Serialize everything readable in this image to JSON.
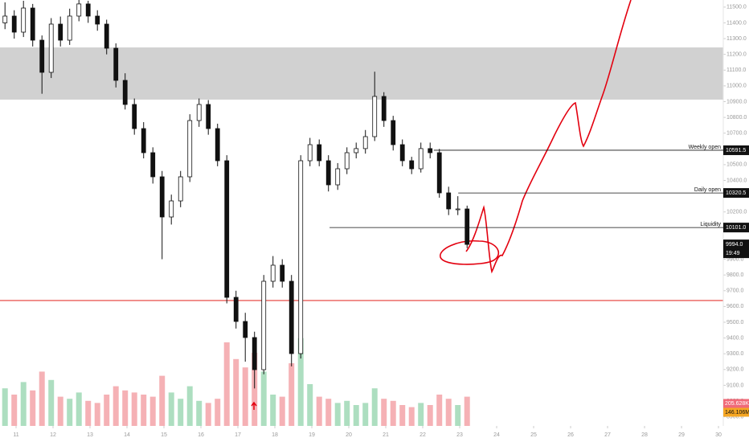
{
  "chart_data": {
    "type": "candlestick",
    "x": [
      10.7,
      10.95,
      11.2,
      11.45,
      11.7,
      11.95,
      12.2,
      12.45,
      12.7,
      12.95,
      13.2,
      13.45,
      13.7,
      13.95,
      14.2,
      14.45,
      14.7,
      14.95,
      15.2,
      15.45,
      15.7,
      15.95,
      16.2,
      16.45,
      16.7,
      16.95,
      17.2,
      17.45,
      17.7,
      17.95,
      18.2,
      18.45,
      18.7,
      18.95,
      19.2,
      19.45,
      19.7,
      19.95,
      20.2,
      20.45,
      20.7,
      20.95,
      21.2,
      21.45,
      21.7,
      21.95,
      22.2,
      22.45,
      22.7,
      22.95,
      23.2
    ],
    "open": [
      11400,
      11443,
      11341,
      11494,
      11290,
      11086,
      11392,
      11290,
      11443,
      11520,
      11443,
      11392,
      11239,
      11035,
      10882,
      10729,
      10576,
      10423,
      10168,
      10270,
      10423,
      10780,
      10882,
      10729,
      10525,
      9658,
      9505,
      9403,
      9199,
      9760,
      9862,
      9760,
      9301,
      10525,
      10627,
      10525,
      10372,
      10474,
      10576,
      10602,
      10678,
      10933,
      10780,
      10627,
      10525,
      10474,
      10602,
      10576,
      10321,
      10219,
      10219
    ],
    "high": [
      11530,
      11480,
      11540,
      11520,
      11320,
      11430,
      11440,
      11490,
      11545,
      11540,
      11480,
      11420,
      11270,
      11080,
      10920,
      10770,
      10610,
      10460,
      10310,
      10460,
      10820,
      10920,
      10910,
      10760,
      10560,
      9700,
      9560,
      9440,
      9800,
      9920,
      9900,
      9800,
      10560,
      10670,
      10660,
      10560,
      10510,
      10610,
      10640,
      10720,
      11090,
      10960,
      10810,
      10660,
      10550,
      10640,
      10640,
      10600,
      10360,
      10300,
      10240
    ],
    "low": [
      11360,
      11300,
      11310,
      11250,
      10950,
      11050,
      11250,
      11260,
      11410,
      11400,
      11350,
      11200,
      10990,
      10850,
      10690,
      10540,
      10380,
      9900,
      10120,
      10230,
      10390,
      10740,
      10690,
      10490,
      9620,
      9460,
      9250,
      9080,
      9170,
      9720,
      9720,
      9220,
      9270,
      10490,
      10490,
      10330,
      10340,
      10440,
      10540,
      10570,
      10650,
      10740,
      10590,
      10490,
      10440,
      10450,
      10540,
      10290,
      10180,
      10180,
      9970
    ],
    "close": [
      11443,
      11341,
      11494,
      11290,
      11086,
      11392,
      11290,
      11443,
      11520,
      11443,
      11392,
      11239,
      11035,
      10882,
      10729,
      10576,
      10423,
      10168,
      10270,
      10423,
      10780,
      10882,
      10729,
      10525,
      9658,
      9505,
      9403,
      9199,
      9760,
      9862,
      9760,
      9301,
      10525,
      10627,
      10525,
      10372,
      10474,
      10576,
      10602,
      10678,
      10933,
      10780,
      10627,
      10525,
      10474,
      10602,
      10576,
      10321,
      10219,
      10219,
      9994
    ],
    "volume": [
      1800,
      1500,
      2100,
      1700,
      2600,
      2200,
      1400,
      1300,
      1600,
      1200,
      1100,
      1500,
      1900,
      1700,
      1600,
      1500,
      1400,
      2400,
      1600,
      1300,
      1900,
      1200,
      1100,
      1300,
      4000,
      3200,
      2800,
      3500,
      2600,
      1500,
      1400,
      3000,
      4200,
      2000,
      1400,
      1300,
      1100,
      1200,
      1000,
      1100,
      1800,
      1300,
      1200,
      1000,
      900,
      1100,
      1000,
      1500,
      1300,
      1000,
      1400
    ],
    "vlim": [
      0,
      5000
    ],
    "up_color": "#ffffff",
    "down_color": "#111111",
    "volume_up_color": "#9fd8b5",
    "volume_down_color": "#f3a3a8",
    "xlim": [
      10.565,
      30.13
    ],
    "xticks": [
      11,
      12,
      13,
      14,
      15,
      16,
      17,
      18,
      19,
      20,
      21,
      22,
      23,
      24,
      25,
      26,
      27,
      28,
      29,
      30
    ],
    "ylim": [
      8842,
      11545
    ],
    "yticks": [
      {
        "value": 8900,
        "label": "8900.0"
      },
      {
        "value": 9000,
        "label": "9000.0"
      },
      {
        "value": 9100,
        "label": "9100.0"
      },
      {
        "value": 9200,
        "label": "9200.0"
      },
      {
        "value": 9300,
        "label": "9300.0"
      },
      {
        "value": 9400,
        "label": "9400.0"
      },
      {
        "value": 9500,
        "label": "9500.0"
      },
      {
        "value": 9600,
        "label": "9600.0"
      },
      {
        "value": 9700,
        "label": "9700.0"
      },
      {
        "value": 9800,
        "label": "9800.0"
      },
      {
        "value": 9900,
        "label": "9900.0"
      },
      {
        "value": 10000,
        "label": "10000.0"
      },
      {
        "value": 10100,
        "label": "10100.0"
      },
      {
        "value": 10200,
        "label": "10200.0"
      },
      {
        "value": 10300,
        "label": "10300.0"
      },
      {
        "value": 10400,
        "label": "10400.0"
      },
      {
        "value": 10500,
        "label": "10500.0"
      },
      {
        "value": 10600,
        "label": "10600.0"
      },
      {
        "value": 10700,
        "label": "10700.0"
      },
      {
        "value": 10800,
        "label": "10800.0"
      },
      {
        "value": 10900,
        "label": "10900.0"
      },
      {
        "value": 11000,
        "label": "11000.0"
      },
      {
        "value": 11100,
        "label": "11100.0"
      },
      {
        "value": 11200,
        "label": "11200.0"
      },
      {
        "value": 11300,
        "label": "11300.0"
      },
      {
        "value": 11400,
        "label": "11400.0"
      },
      {
        "value": 11500,
        "label": "11500.0"
      }
    ],
    "zone": {
      "range": [
        10913,
        11244
      ],
      "color": "#cccccc"
    },
    "support": {
      "value": 9638,
      "color": "#e53935"
    },
    "levels": {
      "names": [
        "Weekly open",
        "Daily open",
        "Liquidity"
      ],
      "values": [
        10591.5,
        10320.5,
        10101
      ],
      "value_labels": [
        "10591.5",
        "10320.5",
        "10101.0"
      ],
      "x_start": [
        22.3,
        22.96,
        19.48
      ]
    },
    "last": {
      "value": 9994,
      "label": "9994.0",
      "time": "19:49"
    },
    "volume_labels": [
      "205.628K",
      "146.106M"
    ]
  }
}
